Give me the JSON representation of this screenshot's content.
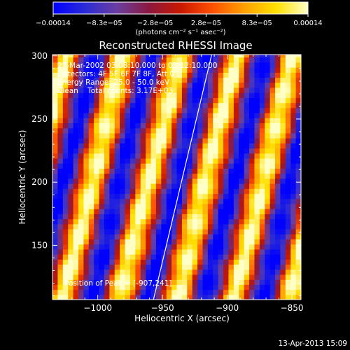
{
  "chart_data": {
    "type": "heatmap",
    "title": "Reconstructed RHESSI Image",
    "xlabel": "Heliocentric X (arcsec)",
    "ylabel": "Heliocentric Y (arcsec)",
    "xlim": [
      -1035,
      -843
    ],
    "ylim": [
      107,
      301
    ],
    "x_ticks": [
      -1000,
      -950,
      -900,
      -850
    ],
    "x_tick_labels": [
      "−1000",
      "−950",
      "−900",
      "−850"
    ],
    "y_ticks": [
      150,
      200,
      250,
      300
    ],
    "y_tick_labels": [
      "150",
      "200",
      "250",
      "300"
    ],
    "colorbar": {
      "min": -0.00014,
      "max": 0.00014,
      "tick_labels": [
        "−0.00014",
        "−8.3e−05",
        "−2.8e−05",
        "2.8e−05",
        "8.3e−05",
        "0.00014"
      ],
      "unit_label": "(photons cm⁻² s⁻¹ asec⁻²)",
      "colors": [
        "#0000ff",
        "#2b2bd6",
        "#6a3fa0",
        "#8c1840",
        "#c81800",
        "#ff5000",
        "#ffa000",
        "#ffe000",
        "#ffffc8"
      ]
    },
    "annotations": {
      "time": "27-Mar-2002 03:08:10.000 to 03:12:10.000",
      "detectors": "Detectors: 4F 5F 6F 7F 8F, Att 0",
      "energy": "Energy Range: 25.0 - 50.0 keV",
      "clean": "Clean    Total counts: 3.17E+03",
      "peak": "Position of Peak = [-907,241]",
      "footer_date": "13-Apr-2013 15:09"
    },
    "limb_line": {
      "x": [
        -957,
        -912
      ],
      "y": [
        107,
        301
      ]
    },
    "fringe_pattern": {
      "period_x_arcsec": 44,
      "stripe_slope_x_per_y": 0.24,
      "phase_ref_x": -907,
      "phase_ref_y": 241
    }
  }
}
